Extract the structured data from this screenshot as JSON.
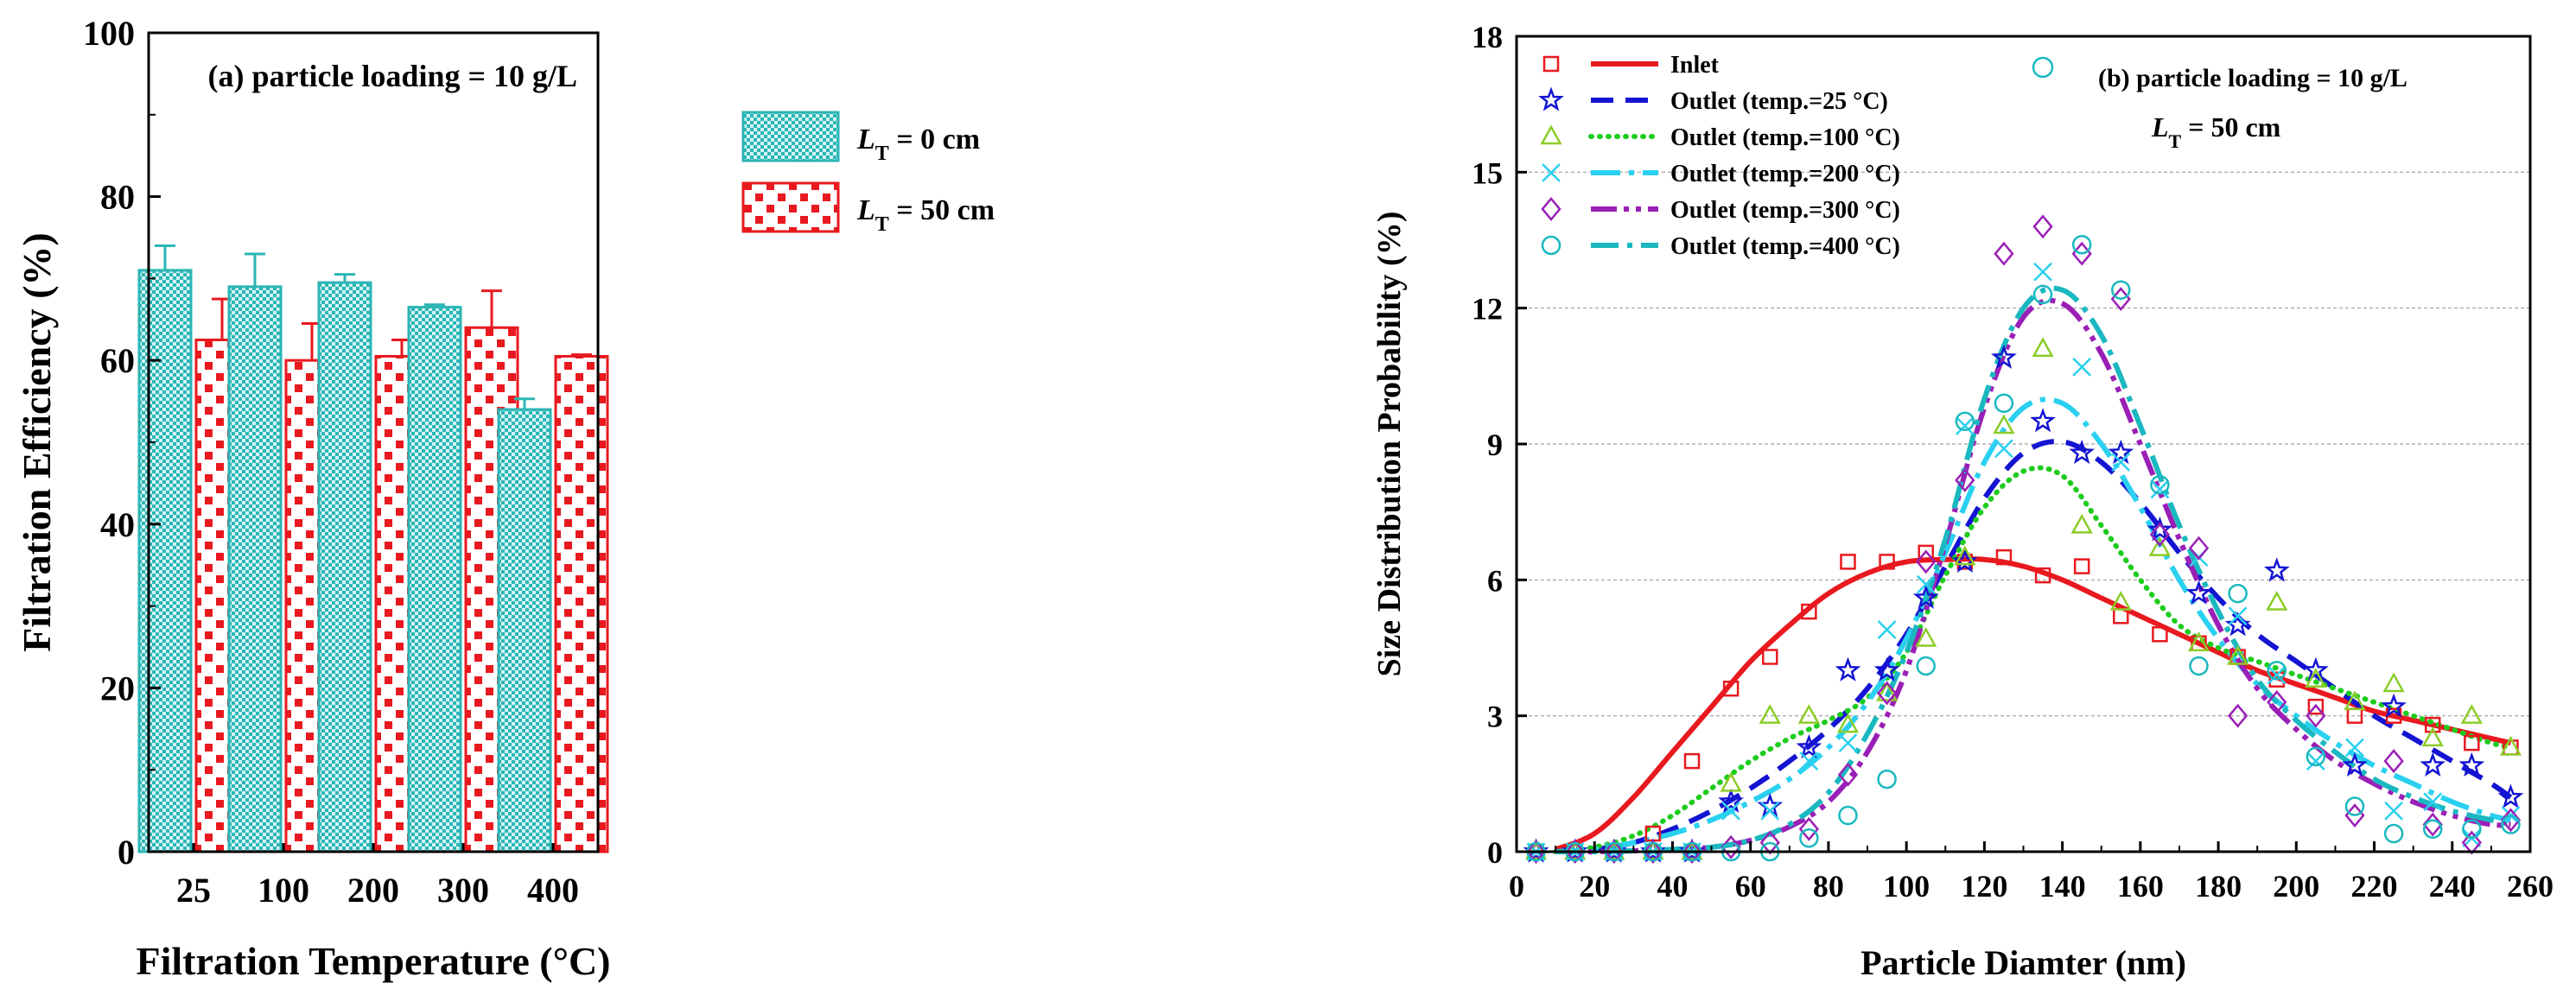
{
  "chart_data": [
    {
      "type": "bar",
      "panel_label": "(a) particle loading  = 10 g/L",
      "xlabel": "Filtration Temperature (°C)",
      "ylabel": "Filtration Efficiency (%)",
      "categories": [
        "25",
        "100",
        "200",
        "300",
        "400"
      ],
      "ylim": [
        0,
        100
      ],
      "yticks": [
        "0",
        "20",
        "40",
        "60",
        "80",
        "100"
      ],
      "grid": false,
      "legend_position": "top-right",
      "series": [
        {
          "name": "L_T = 0 cm",
          "legend_main": "L",
          "legend_sub": "T",
          "legend_rest": " = 0 cm",
          "values": [
            71,
            69,
            69.5,
            66.5,
            54
          ],
          "errors": [
            3,
            4,
            1,
            0.3,
            1.3
          ],
          "color": "#2cb5b5",
          "fill": "#d6f4f4",
          "pattern": "checker"
        },
        {
          "name": "L_T = 50 cm",
          "legend_main": "L",
          "legend_sub": "T",
          "legend_rest": " = 50 cm",
          "values": [
            62.5,
            60,
            60.5,
            64,
            60.5
          ],
          "errors": [
            5,
            4.5,
            2,
            4.5,
            0.2
          ],
          "color": "#e8191f",
          "fill": "#ffffff",
          "pattern": "dots"
        }
      ]
    },
    {
      "type": "line",
      "panel_label": "(b) particle loading = 10 g/L",
      "annotation_main": "L",
      "annotation_sub": "T",
      "annotation_rest": " = 50 cm",
      "xlabel": "Particle Diamter (nm)",
      "ylabel": "Size Distribution Probability (%)",
      "xlim": [
        0,
        260
      ],
      "ylim": [
        0,
        18
      ],
      "xticks": [
        "0",
        "20",
        "40",
        "60",
        "80",
        "100",
        "120",
        "140",
        "160",
        "180",
        "200",
        "220",
        "240",
        "260"
      ],
      "yticks": [
        "0",
        "3",
        "6",
        "9",
        "12",
        "15",
        "18"
      ],
      "grid": "horizontal dashed",
      "legend_position": "top-left",
      "scatter_x": [
        5,
        15,
        25,
        35,
        45,
        55,
        65,
        75,
        85,
        95,
        105,
        115,
        125,
        135,
        145,
        155,
        165,
        175,
        185,
        195,
        205,
        215,
        225,
        235,
        245,
        255
      ],
      "series": [
        {
          "name": "Inlet",
          "color": "#e8191f",
          "marker": "square",
          "dash": "solid",
          "points": [
            0,
            0,
            0,
            0.4,
            2.0,
            3.6,
            4.3,
            5.3,
            6.4,
            6.4,
            6.6,
            6.4,
            6.5,
            6.1,
            6.3,
            5.2,
            4.8,
            4.6,
            4.3,
            3.8,
            3.2,
            3.0,
            3.0,
            2.8,
            2.4,
            2.3
          ],
          "curve_x": [
            10,
            20,
            30,
            40,
            50,
            60,
            70,
            80,
            90,
            100,
            110,
            120,
            130,
            140,
            150,
            160,
            170,
            180,
            190,
            200,
            210,
            220,
            230,
            240,
            250,
            255
          ],
          "curve_y": [
            0.05,
            0.4,
            1.2,
            2.2,
            3.2,
            4.2,
            5.0,
            5.7,
            6.15,
            6.4,
            6.45,
            6.45,
            6.3,
            6.0,
            5.6,
            5.2,
            4.8,
            4.4,
            4.0,
            3.7,
            3.4,
            3.1,
            2.9,
            2.7,
            2.5,
            2.4
          ]
        },
        {
          "name": "Outlet (temp.=25 °C)",
          "color": "#1414d2",
          "marker": "star",
          "dash": "26,14",
          "points": [
            0,
            0,
            0,
            0,
            0,
            1.1,
            1.0,
            2.3,
            4.0,
            4.0,
            5.6,
            6.4,
            10.9,
            9.5,
            8.8,
            8.8,
            7.1,
            5.7,
            5.0,
            6.2,
            4.0,
            1.9,
            3.2,
            1.9,
            1.9,
            1.2
          ],
          "curve_x": [
            10,
            20,
            30,
            40,
            50,
            60,
            70,
            80,
            90,
            100,
            110,
            120,
            130,
            140,
            150,
            160,
            170,
            180,
            190,
            200,
            210,
            220,
            230,
            240,
            250,
            255
          ],
          "curve_y": [
            0,
            0.05,
            0.2,
            0.5,
            0.9,
            1.4,
            2.0,
            2.7,
            3.6,
            4.8,
            6.3,
            7.8,
            8.8,
            9.05,
            8.6,
            7.7,
            6.6,
            5.6,
            4.8,
            4.2,
            3.6,
            3.0,
            2.5,
            2.0,
            1.5,
            1.2
          ]
        },
        {
          "name": "Outlet (temp.=100 °C)",
          "color": "#8ccc28",
          "marker": "triangle",
          "dash": "4,6",
          "line_color": "#1ecc1e",
          "points": [
            0,
            0,
            0,
            0,
            0,
            1.5,
            3.0,
            3.0,
            2.8,
            3.5,
            4.7,
            6.5,
            9.4,
            11.1,
            7.2,
            5.5,
            6.7,
            4.6,
            4.3,
            5.5,
            3.8,
            3.3,
            3.7,
            2.5,
            3.0,
            2.3
          ],
          "curve_x": [
            10,
            20,
            30,
            40,
            50,
            60,
            70,
            80,
            90,
            100,
            110,
            120,
            130,
            140,
            150,
            160,
            170,
            180,
            190,
            200,
            210,
            220,
            230,
            240,
            250,
            255
          ],
          "curve_y": [
            0,
            0.1,
            0.35,
            0.8,
            1.4,
            2.0,
            2.5,
            2.9,
            3.4,
            4.4,
            6.1,
            7.6,
            8.4,
            8.3,
            7.2,
            6.0,
            5.0,
            4.5,
            4.2,
            3.9,
            3.6,
            3.3,
            3.0,
            2.7,
            2.4,
            2.3
          ]
        },
        {
          "name": "Outlet (temp.=200 °C)",
          "color": "#2ad0f0",
          "marker": "x",
          "dash": "34,10,6,10",
          "points": [
            0,
            0,
            0,
            0,
            0,
            0.9,
            0.9,
            2.0,
            2.4,
            4.9,
            5.9,
            9.4,
            8.9,
            12.8,
            10.7,
            8.6,
            8.0,
            6.5,
            5.2,
            3.9,
            2.0,
            2.3,
            0.9,
            1.1,
            0.3,
            0.8
          ],
          "curve_x": [
            10,
            20,
            30,
            40,
            50,
            60,
            70,
            80,
            90,
            100,
            110,
            120,
            130,
            140,
            150,
            160,
            170,
            180,
            190,
            200,
            210,
            220,
            230,
            240,
            250,
            255
          ],
          "curve_y": [
            0,
            0.05,
            0.2,
            0.4,
            0.7,
            1.1,
            1.6,
            2.3,
            3.3,
            4.7,
            6.6,
            8.6,
            9.8,
            9.9,
            9.0,
            7.6,
            6.0,
            4.7,
            3.7,
            3.0,
            2.4,
            1.9,
            1.5,
            1.1,
            0.8,
            0.7
          ]
        },
        {
          "name": "Outlet (temp.=300 °C)",
          "color": "#9a1fb6",
          "marker": "diamond",
          "dash": "30,8,6,8,6,8",
          "points": [
            0,
            0,
            0,
            0,
            0,
            0.1,
            0.2,
            0.5,
            1.7,
            3.5,
            6.4,
            8.2,
            13.2,
            13.8,
            13.2,
            12.2,
            7.0,
            6.7,
            3.0,
            3.3,
            3.0,
            0.8,
            2.0,
            0.6,
            0.2,
            0.7
          ],
          "curve_x": [
            10,
            20,
            30,
            40,
            50,
            60,
            70,
            80,
            90,
            100,
            110,
            120,
            130,
            140,
            150,
            160,
            170,
            180,
            190,
            200,
            210,
            220,
            230,
            240,
            250,
            255
          ],
          "curve_y": [
            0,
            0,
            0.02,
            0.05,
            0.1,
            0.25,
            0.55,
            1.1,
            2.2,
            4.0,
            6.8,
            9.8,
            11.8,
            12.1,
            11.0,
            9.0,
            6.9,
            5.0,
            3.6,
            2.7,
            2.0,
            1.5,
            1.1,
            0.8,
            0.6,
            0.6
          ]
        },
        {
          "name": "Outlet (temp.=400 °C)",
          "color": "#1ab8c0",
          "marker": "circle",
          "dash": "32,10,6,10",
          "points": [
            0,
            0,
            0,
            0,
            0,
            0,
            0,
            0.3,
            0.8,
            1.6,
            4.1,
            9.5,
            9.9,
            12.3,
            13.4,
            12.4,
            8.1,
            4.1,
            5.7,
            4.0,
            2.1,
            1.0,
            0.4,
            0.5,
            0.5,
            0.6
          ],
          "curve_x": [
            10,
            20,
            30,
            40,
            50,
            60,
            70,
            80,
            90,
            100,
            110,
            120,
            130,
            140,
            150,
            160,
            170,
            180,
            190,
            200,
            210,
            220,
            230,
            240,
            250,
            255
          ],
          "curve_y": [
            0,
            0,
            0.02,
            0.05,
            0.1,
            0.25,
            0.6,
            1.3,
            2.6,
            4.4,
            6.9,
            10.0,
            12.0,
            12.4,
            11.4,
            9.4,
            7.2,
            5.3,
            3.8,
            2.9,
            2.2,
            1.6,
            1.2,
            0.9,
            0.7,
            0.6
          ]
        }
      ]
    }
  ]
}
